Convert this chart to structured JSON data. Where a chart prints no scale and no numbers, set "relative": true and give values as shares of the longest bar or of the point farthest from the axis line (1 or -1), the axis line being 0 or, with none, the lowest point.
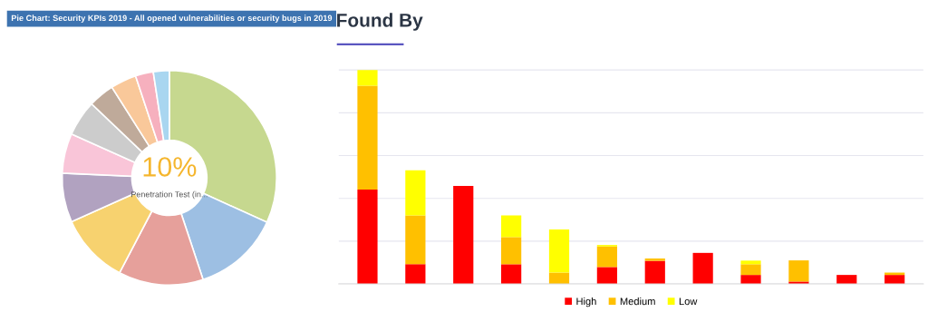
{
  "chart_data": [
    {
      "type": "donut",
      "title": "Pie Chart: Security KPIs 2019 - All opened vulnerabilities or security bugs in 2019",
      "categories": [
        null,
        null,
        null,
        null,
        null,
        null,
        null,
        null,
        null,
        null,
        null
      ],
      "values": [
        31.8,
        13.1,
        12.8,
        10.6,
        7.4,
        6.0,
        5.4,
        3.9,
        3.9,
        2.7,
        2.4
      ],
      "colors": [
        "#c6d88f",
        "#9dbfe3",
        "#e6a09b",
        "#f7d26f",
        "#b1a2c0",
        "#f9c5d8",
        "#cccccc",
        "#bfaa9a",
        "#f9c89a",
        "#f6b0be",
        "#a9d6f0"
      ],
      "annotations": [
        "10%",
        "Penetration Test (in..."
      ]
    },
    {
      "type": "bar",
      "title": "Found By",
      "relative": true,
      "stacked": true,
      "grid": "y",
      "legend": "bottom",
      "categories": [
        null,
        null,
        null,
        null,
        null,
        null,
        null,
        null,
        null,
        null,
        null,
        null
      ],
      "series": [
        {
          "name": "High",
          "color": "#ff0000",
          "values": [
            0.441,
            0.092,
            0.458,
            0.092,
            0,
            0.079,
            0.108,
            0.145,
            0.042,
            0.011,
            0.042,
            0.042
          ]
        },
        {
          "name": "Medium",
          "color": "#ffc000",
          "values": [
            0.485,
            0.228,
            0,
            0.127,
            0.053,
            0.096,
            0.011,
            0,
            0.05,
            0.099,
            0,
            0.011
          ]
        },
        {
          "name": "Low",
          "color": "#ffff00",
          "values": [
            0.074,
            0.211,
            0,
            0.101,
            0.202,
            0.007,
            0,
            0,
            0.017,
            0,
            0,
            0
          ]
        }
      ]
    }
  ]
}
